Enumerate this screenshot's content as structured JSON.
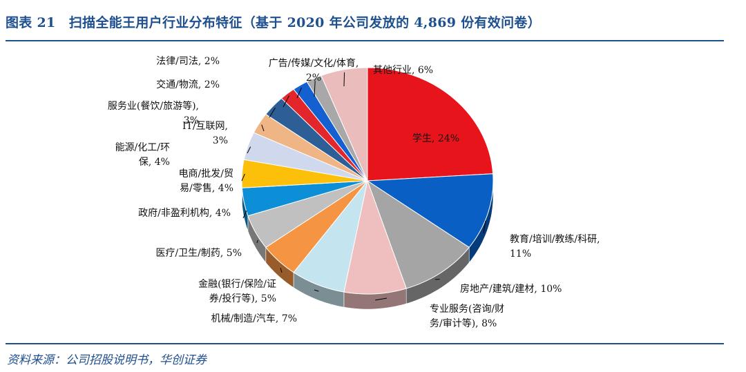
{
  "header": {
    "title": "图表 21　扫描全能王用户行业分布特征（基于 2020 年公司发放的 4,869 份有效问卷）"
  },
  "footer": {
    "source": "资料来源：公司招股说明书，华创证券"
  },
  "chart_data": {
    "type": "pie",
    "title": "扫描全能王用户行业分布特征（基于 2020 年公司发放的 4,869 份有效问卷）",
    "unit": "%",
    "slices": [
      {
        "label": "学生",
        "value": 24,
        "color": "#e8141c",
        "label_lines": [
          "学生, 24%"
        ]
      },
      {
        "label": "教育/培训/教练/科研",
        "value": 11,
        "color": "#0a5fc4",
        "label_lines": [
          "教育/培训/教练/科研,",
          "11%"
        ]
      },
      {
        "label": "房地产/建筑/建材",
        "value": 10,
        "color": "#a5a5a5",
        "label_lines": [
          "房地产/建筑/建材, 10%"
        ]
      },
      {
        "label": "专业服务(咨询/财务/审计等)",
        "value": 8,
        "color": "#efbfbf",
        "label_lines": [
          "专业服务(咨询/财",
          "务/审计等), 8%"
        ]
      },
      {
        "label": "机械/制造/汽车",
        "value": 7,
        "color": "#c4e5ef",
        "label_lines": [
          "机械/制造/汽车, 7%"
        ]
      },
      {
        "label": "金融(银行/保险/证券/投行等)",
        "value": 5,
        "color": "#f59443",
        "label_lines": [
          "金融(银行/保险/证",
          "券/投行等), 5%"
        ]
      },
      {
        "label": "医疗/卫生/制药",
        "value": 5,
        "color": "#c0c0c0",
        "label_lines": [
          "医疗/卫生/制药, 5%"
        ]
      },
      {
        "label": "政府/非盈利机构",
        "value": 4,
        "color": "#0d8fd8",
        "label_lines": [
          "政府/非盈利机构, 4%"
        ]
      },
      {
        "label": "电商/批发/贸易/零售",
        "value": 4,
        "color": "#fcc00a",
        "label_lines": [
          "电商/批发/贸",
          "易/零售, 4%"
        ]
      },
      {
        "label": "能源/化工/环保",
        "value": 4,
        "color": "#cfd8ec",
        "label_lines": [
          "能源/化工/环",
          "保, 4%"
        ]
      },
      {
        "label": "IT/互联网",
        "value": 3,
        "color": "#f0b585",
        "label_lines": [
          "IT/互联网,",
          "3%"
        ]
      },
      {
        "label": "服务业(餐饮/旅游等)",
        "value": 3,
        "color": "#2d5f96",
        "label_lines": [
          "服务业(餐饮/旅游等),",
          "3%"
        ]
      },
      {
        "label": "交通/物流",
        "value": 2,
        "color": "#e3262b",
        "label_lines": [
          "交通/物流, 2%"
        ]
      },
      {
        "label": "法律/司法",
        "value": 2,
        "color": "#1560d0",
        "label_lines": [
          "法律/司法, 2%"
        ]
      },
      {
        "label": "广告/传媒/文化/体育",
        "value": 2,
        "color": "#a8a8a8",
        "label_lines": [
          "广告/传媒/文化/体育,",
          "2%"
        ]
      },
      {
        "label": "其他行业",
        "value": 6,
        "color": "#eabcbc",
        "label_lines": [
          "其他行业, 6%"
        ]
      }
    ]
  }
}
